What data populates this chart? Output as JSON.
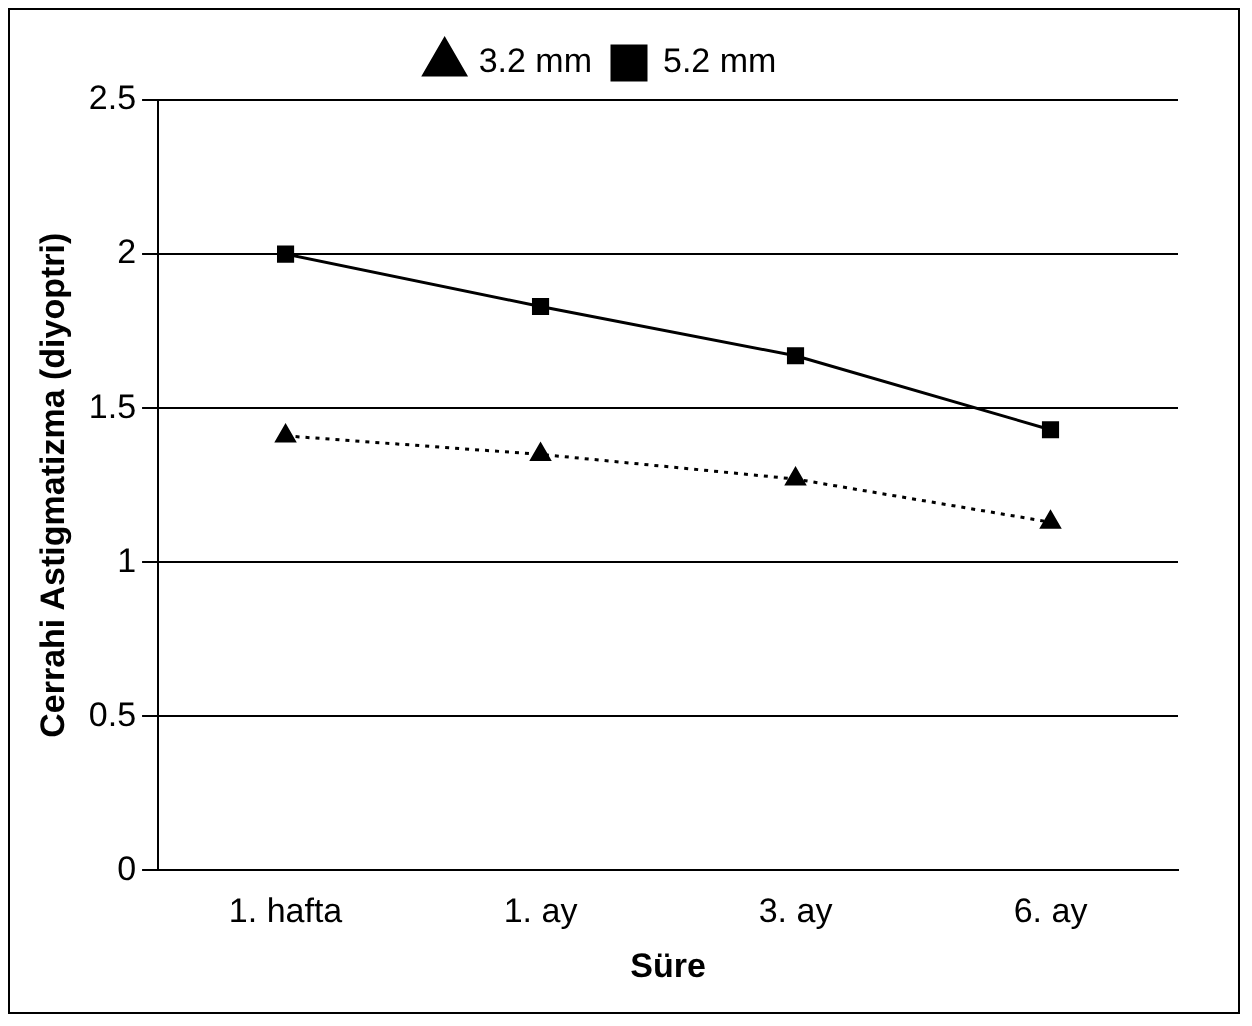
{
  "chart_data": {
    "type": "line",
    "xlabel": "Süre",
    "ylabel": "Cerrahi Astigmatizma (diyoptri)",
    "categories": [
      "1. hafta",
      "1. ay",
      "3. ay",
      "6. ay"
    ],
    "series": [
      {
        "name": "3.2 mm",
        "color": "#000000",
        "values": [
          1.41,
          1.35,
          1.27,
          1.13
        ],
        "marker": "triangle",
        "line_style": "dotted"
      },
      {
        "name": "5.2 mm",
        "color": "#000000",
        "values": [
          2.0,
          1.83,
          1.67,
          1.43
        ],
        "marker": "square",
        "line_style": "solid"
      }
    ],
    "ylim": [
      0,
      2.5
    ],
    "yticks": [
      0,
      0.5,
      1,
      1.5,
      2,
      2.5
    ],
    "grid": "y",
    "legend": "top"
  }
}
